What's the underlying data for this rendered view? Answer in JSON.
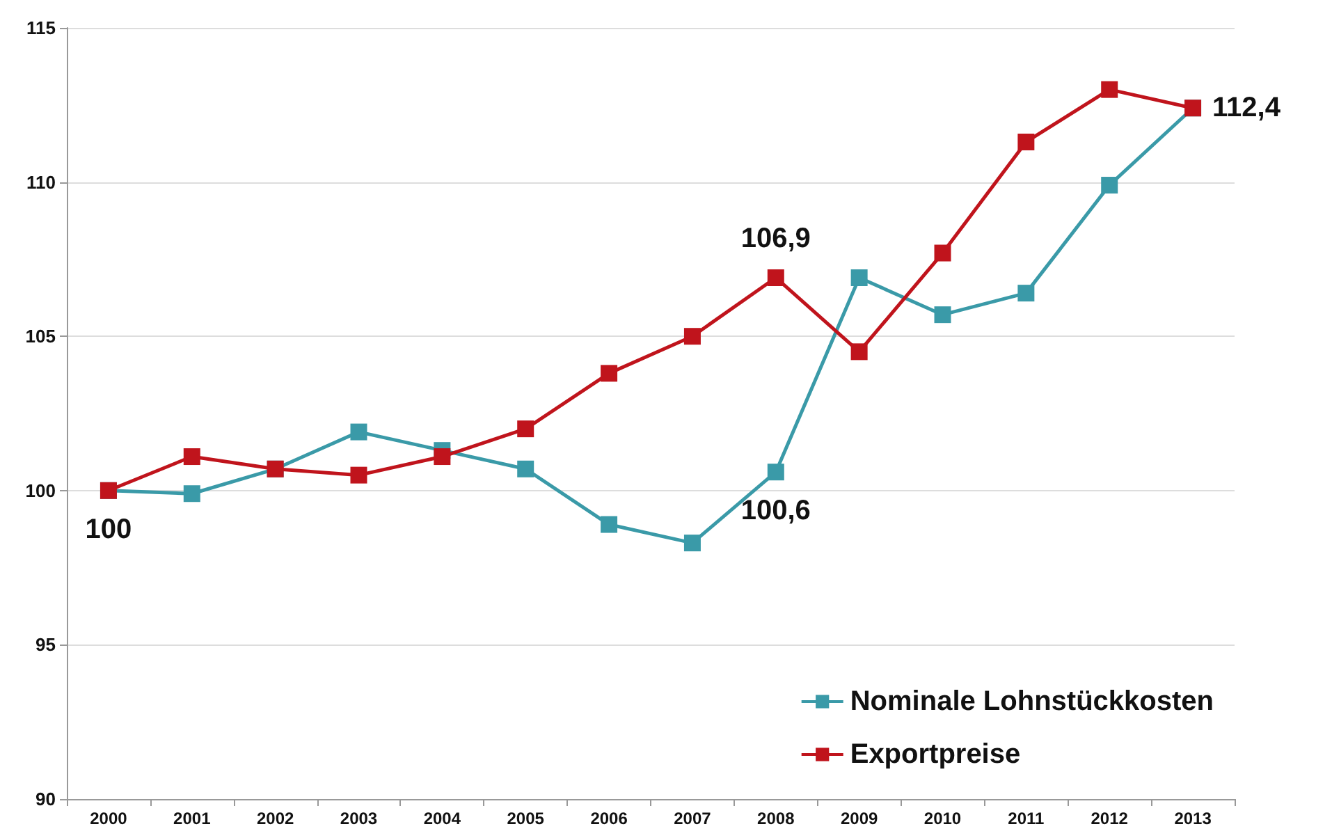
{
  "chart_data": {
    "type": "line",
    "categories": [
      "2000",
      "2001",
      "2002",
      "2003",
      "2004",
      "2005",
      "2006",
      "2007",
      "2008",
      "2009",
      "2010",
      "2011",
      "2012",
      "2013"
    ],
    "series": [
      {
        "name": "Nominale Lohnstückkosten",
        "color": "#3a9aa8",
        "values": [
          100,
          99.9,
          100.7,
          101.9,
          101.3,
          100.7,
          98.9,
          98.3,
          100.6,
          106.9,
          105.7,
          106.4,
          109.9,
          112.4
        ],
        "value_labels": [
          "100",
          null,
          null,
          null,
          null,
          null,
          null,
          null,
          "100,6",
          null,
          null,
          null,
          null,
          null
        ]
      },
      {
        "name": "Exportpreise",
        "color": "#c0141c",
        "values": [
          100,
          101.1,
          100.7,
          100.5,
          101.1,
          102.0,
          103.8,
          105.0,
          106.9,
          104.5,
          107.7,
          111.3,
          113.0,
          112.4
        ],
        "value_labels": [
          null,
          null,
          null,
          null,
          null,
          null,
          null,
          null,
          "106,9",
          null,
          null,
          null,
          null,
          "112,4"
        ]
      }
    ],
    "ylim": [
      90,
      115
    ],
    "yticks": [
      90,
      95,
      100,
      105,
      110,
      115
    ],
    "grid": "y",
    "legend": "bottom right",
    "marker": "square",
    "line_style": "solid"
  }
}
